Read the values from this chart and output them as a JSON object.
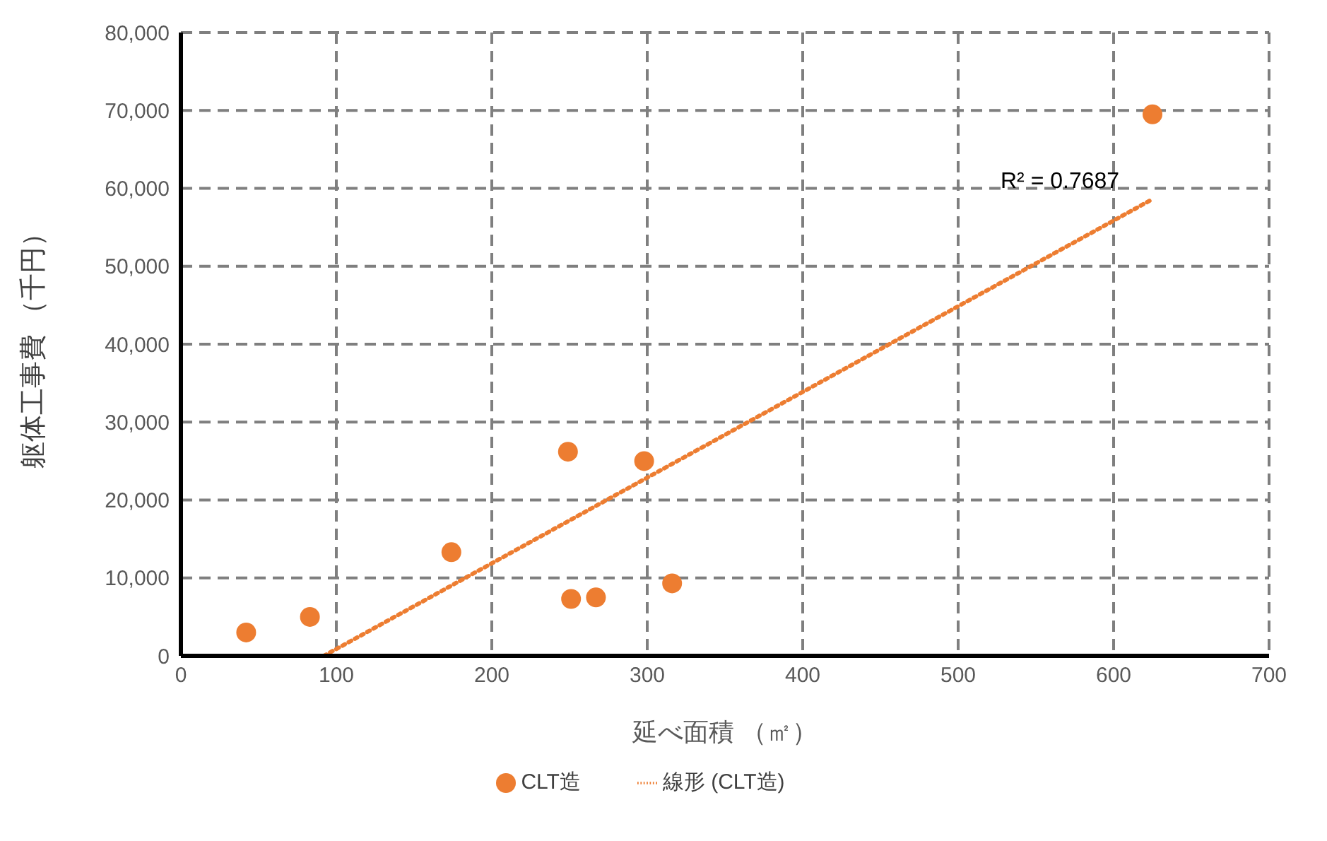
{
  "chart_data": {
    "type": "scatter",
    "xlabel": "延べ面積 （㎡）",
    "ylabel": "躯体工事費 （千円）",
    "series": [
      {
        "name": "CLT造",
        "color": "#ed7d31",
        "marker": "circle",
        "x": [
          42,
          83,
          174,
          249,
          251,
          267,
          298,
          316,
          625
        ],
        "values": [
          3000,
          5000,
          13300,
          26200,
          7300,
          7500,
          25000,
          9300,
          69500
        ]
      },
      {
        "name": "線形 (CLT造)",
        "type": "line",
        "color": "#ed7d31",
        "marker": "none",
        "line_style": "dotted",
        "x": [
          92,
          624
        ],
        "values": [
          0,
          58500
        ]
      }
    ],
    "xlim": [
      0,
      700
    ],
    "xticks": [
      0,
      100,
      200,
      300,
      400,
      500,
      600,
      700
    ],
    "ylim": [
      0,
      80000
    ],
    "yticks": [
      0,
      {
        "value": 10000,
        "label": "10,000"
      },
      {
        "value": 20000,
        "label": "20,000"
      },
      {
        "value": 30000,
        "label": "30,000"
      },
      {
        "value": 40000,
        "label": "40,000"
      },
      {
        "value": 50000,
        "label": "50,000"
      },
      {
        "value": 60000,
        "label": "60,000"
      },
      {
        "value": 70000,
        "label": "70,000"
      },
      {
        "value": 80000,
        "label": "80,000"
      }
    ],
    "grid": true,
    "legend": "bottom",
    "annotations": [
      "R² = 0.7687"
    ]
  }
}
